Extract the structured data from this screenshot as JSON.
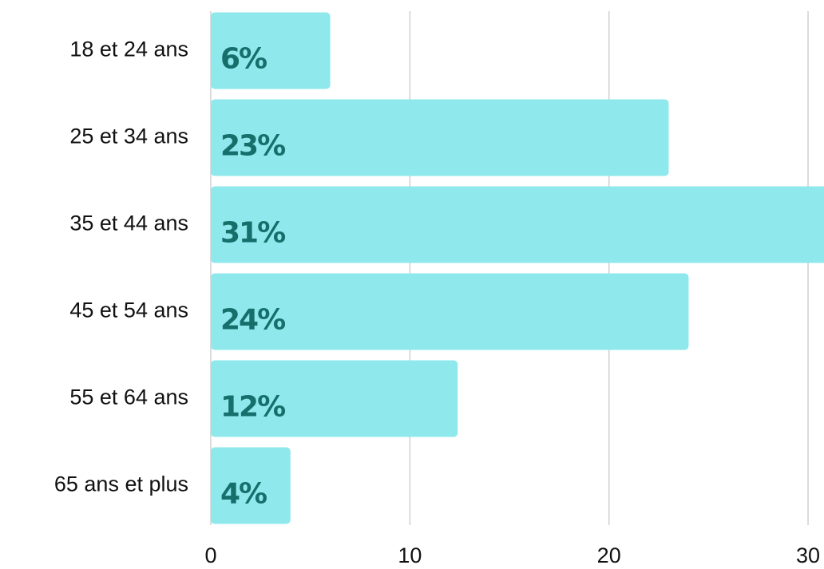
{
  "chart_data": {
    "type": "bar",
    "orientation": "horizontal",
    "categories": [
      "18 et 24 ans",
      "25 et 34 ans",
      "35 et 44 ans",
      "45 et 54 ans",
      "55 et 64 ans",
      "65 ans et plus"
    ],
    "values": [
      6,
      23,
      31,
      24,
      12.4,
      4
    ],
    "value_labels": [
      "6%",
      "23%",
      "31%",
      "24%",
      "12%",
      "4%"
    ],
    "color": "#8fe8ec",
    "xlim": [
      0,
      30.8
    ],
    "xticks": [
      0,
      10,
      20,
      30
    ],
    "grid": true
  }
}
